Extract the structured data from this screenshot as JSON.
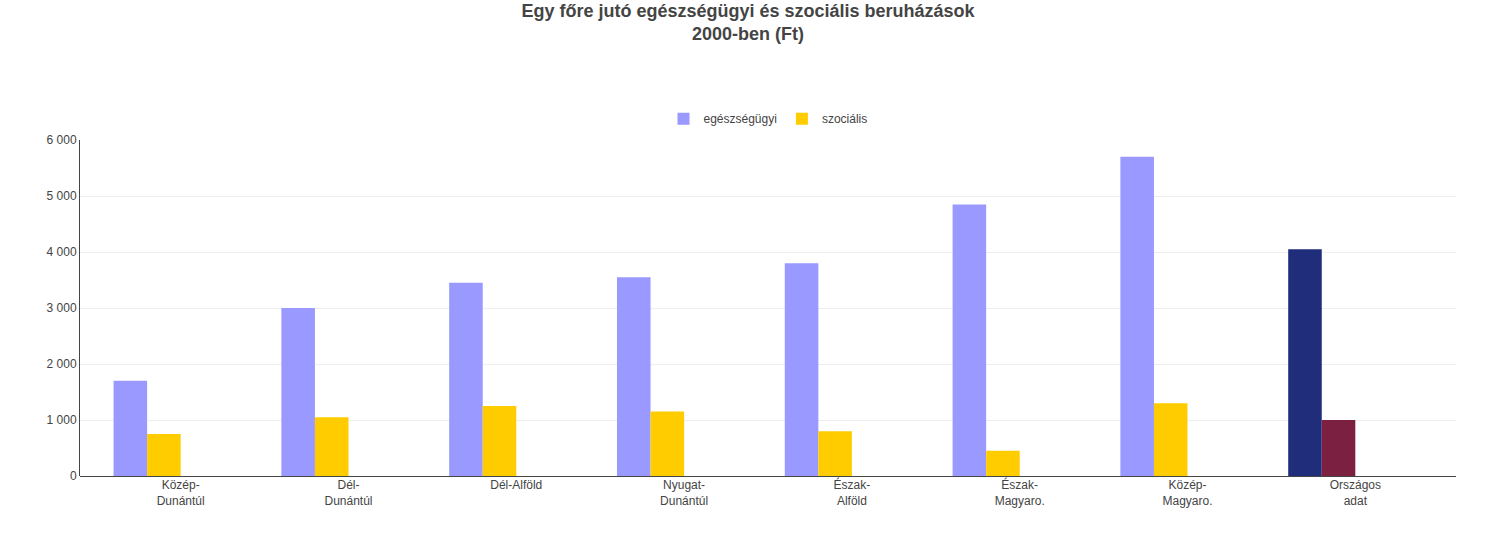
{
  "chart_data": {
    "type": "bar",
    "title": "Egy főre jutó egészségügyi és szociális beruházások\n2000-ben (Ft)",
    "categories": [
      "Közép-\nDunántúl",
      "Dél-\nDunántúl",
      "Dél-Alföld",
      "Nyugat-\nDunántúl",
      "Észak-\nAlföld",
      "Észak-\nMagyaro.",
      "Közép-\nMagyaro.",
      "Országos\nadat"
    ],
    "series": [
      {
        "name": "egészségügyi",
        "color": "#9999ff",
        "colors": [
          "#9999ff",
          "#9999ff",
          "#9999ff",
          "#9999ff",
          "#9999ff",
          "#9999ff",
          "#9999ff",
          "#1f2d7a"
        ],
        "values": [
          1700,
          3000,
          3450,
          3550,
          3800,
          4850,
          5700,
          4050
        ]
      },
      {
        "name": "szociális",
        "color": "#ffcc00",
        "colors": [
          "#ffcc00",
          "#ffcc00",
          "#ffcc00",
          "#ffcc00",
          "#ffcc00",
          "#ffcc00",
          "#ffcc00",
          "#7b2040"
        ],
        "values": [
          750,
          1050,
          1250,
          1150,
          800,
          450,
          1300,
          1000
        ]
      }
    ],
    "ylim": [
      0,
      6000
    ],
    "yticks": [
      0,
      {
        "value": 1000,
        "label": "1 000"
      },
      {
        "value": 2000,
        "label": "2 000"
      },
      {
        "value": 3000,
        "label": "3 000"
      },
      {
        "value": 4000,
        "label": "4 000"
      },
      {
        "value": 5000,
        "label": "5 000"
      },
      {
        "value": 6000,
        "label": "6 000"
      }
    ],
    "grid": true,
    "legend": "top"
  }
}
